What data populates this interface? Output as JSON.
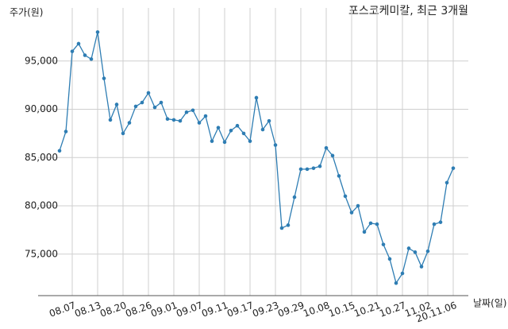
{
  "chart_data": {
    "type": "line",
    "title": "포스코케미칼, 최근 3개월",
    "y_label": "주가(원)",
    "x_label": "날짜(일)",
    "categories": [
      null,
      null,
      "08.07",
      null,
      null,
      null,
      "08.13",
      null,
      null,
      null,
      "08.20",
      null,
      null,
      null,
      "08.26",
      null,
      null,
      null,
      "09.01",
      null,
      null,
      null,
      "09.07",
      null,
      null,
      null,
      "09.11",
      null,
      null,
      null,
      "09.17",
      null,
      null,
      null,
      "09.23",
      null,
      null,
      null,
      "09.29",
      null,
      null,
      null,
      "10.08",
      null,
      null,
      null,
      "10.15",
      null,
      null,
      null,
      "10.21",
      null,
      null,
      null,
      "10.27",
      null,
      null,
      null,
      "11.02",
      null,
      null,
      null,
      "20.11.06"
    ],
    "values": [
      85700,
      87700,
      96000,
      96800,
      95600,
      95200,
      98000,
      93200,
      88900,
      90500,
      87500,
      88600,
      90300,
      90700,
      91700,
      90200,
      90700,
      89000,
      88900,
      88800,
      89700,
      89900,
      88600,
      89300,
      86700,
      88100,
      86600,
      87800,
      88300,
      87500,
      86700,
      91200,
      87900,
      88800,
      86300,
      77700,
      78000,
      80900,
      83800,
      83800,
      83900,
      84100,
      86000,
      85200,
      83100,
      81000,
      79300,
      80000,
      77300,
      78200,
      78100,
      76000,
      74500,
      72000,
      73000,
      75600,
      75200,
      73700,
      75300,
      78100,
      78300,
      82400,
      83900
    ],
    "color": "#2e7db3",
    "ylim": [
      70700,
      100500
    ],
    "yticks": [
      {
        "value": 75000,
        "label": "75,000"
      },
      {
        "value": 80000,
        "label": "80,000"
      },
      {
        "value": 85000,
        "label": "85,000"
      },
      {
        "value": 90000,
        "label": "90,000"
      },
      {
        "value": 95000,
        "label": "95,000"
      }
    ],
    "grid": true
  }
}
